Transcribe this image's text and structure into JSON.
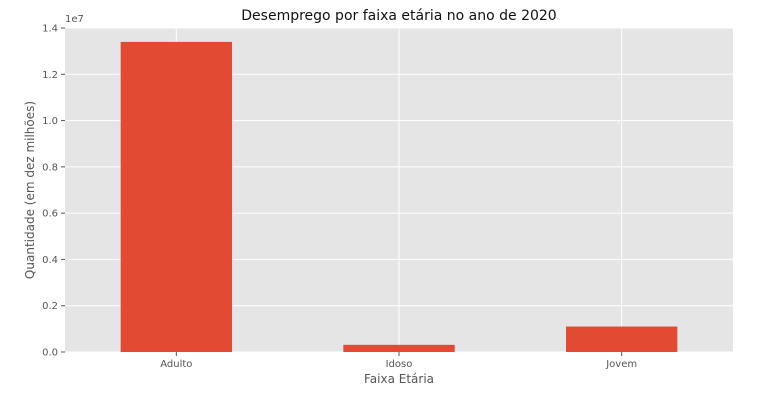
{
  "chart_data": {
    "type": "bar",
    "title": "Desemprego por faixa etária no ano de 2020",
    "xlabel": "Faixa Etária",
    "ylabel": "Quantidade (em dez milhões)",
    "y_offset_label": "1e7",
    "categories": [
      "Adulto",
      "Idoso",
      "Jovem"
    ],
    "values": [
      13400000,
      310000,
      1100000
    ],
    "ylim": [
      0,
      14000000
    ],
    "yticks": [
      0,
      2000000,
      4000000,
      6000000,
      8000000,
      10000000,
      12000000,
      14000000
    ],
    "ytick_labels": [
      "0.0",
      "0.2",
      "0.4",
      "0.6",
      "0.8",
      "1.0",
      "1.2",
      "1.4"
    ],
    "grid": true,
    "legend": "none",
    "colors": {
      "bar": "#E24A33",
      "plot_background": "#E5E5E5",
      "grid": "#FFFFFF"
    }
  }
}
